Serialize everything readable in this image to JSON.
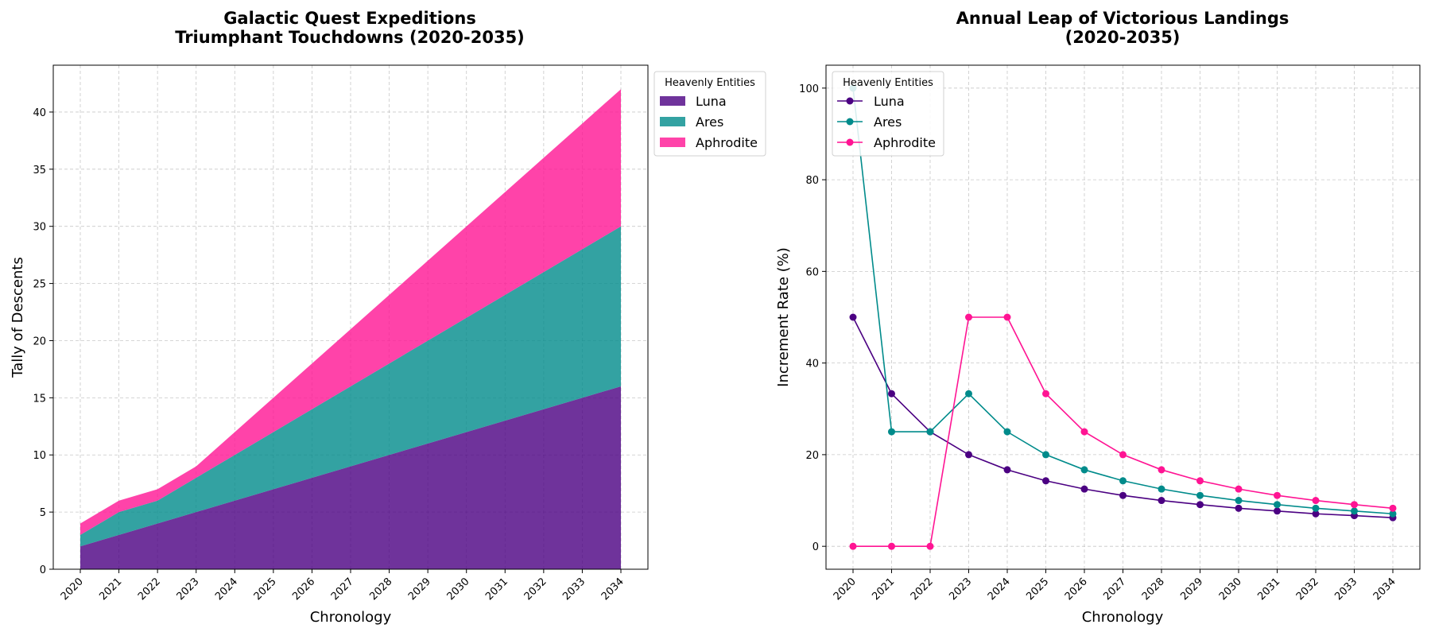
{
  "colors": {
    "luna": "#4b0082",
    "ares": "#008b8b",
    "aphrodite": "#ff1493",
    "grid": "#b0b0b0"
  },
  "chart_data": [
    {
      "type": "area",
      "stacked": true,
      "title_line1": "Galactic Quest Expeditions",
      "title_line2": "Triumphant Touchdowns (2020-2035)",
      "xlabel": "Chronology",
      "ylabel": "Tally of Descents",
      "x": [
        "2020",
        "2021",
        "2022",
        "2023",
        "2024",
        "2025",
        "2026",
        "2027",
        "2028",
        "2029",
        "2030",
        "2031",
        "2032",
        "2033",
        "2034"
      ],
      "yticks": [
        0,
        5,
        10,
        15,
        20,
        25,
        30,
        35,
        40
      ],
      "ylim": [
        0,
        44.1
      ],
      "grid": true,
      "legend": {
        "title": "Heavenly Entities",
        "placement": "outside top-right"
      },
      "series": [
        {
          "name": "Luna",
          "values": [
            2,
            3,
            4,
            5,
            6,
            7,
            8,
            9,
            10,
            11,
            12,
            13,
            14,
            15,
            16
          ]
        },
        {
          "name": "Ares",
          "values": [
            1,
            2,
            2,
            3,
            4,
            5,
            6,
            7,
            8,
            9,
            10,
            11,
            12,
            13,
            14
          ]
        },
        {
          "name": "Aphrodite",
          "values": [
            1,
            1,
            1,
            1,
            2,
            3,
            4,
            5,
            6,
            7,
            8,
            9,
            10,
            11,
            12
          ]
        }
      ]
    },
    {
      "type": "line",
      "title_line1": "Annual Leap of Victorious Landings",
      "title_line2": "(2020-2035)",
      "xlabel": "Chronology",
      "ylabel": "Increment Rate (%)",
      "x": [
        "2020",
        "2021",
        "2022",
        "2023",
        "2024",
        "2025",
        "2026",
        "2027",
        "2028",
        "2029",
        "2030",
        "2031",
        "2032",
        "2033",
        "2034"
      ],
      "yticks": [
        0,
        20,
        40,
        60,
        80,
        100
      ],
      "ylim": [
        -5,
        105
      ],
      "grid": true,
      "legend": {
        "title": "Heavenly Entities",
        "placement": "top-left"
      },
      "series": [
        {
          "name": "Luna",
          "values": [
            50,
            33.3,
            25,
            20,
            16.7,
            14.3,
            12.5,
            11.1,
            10,
            9.1,
            8.3,
            7.7,
            7.1,
            6.7,
            6.25
          ]
        },
        {
          "name": "Ares",
          "values": [
            100,
            25,
            25,
            33.3,
            25,
            20,
            16.7,
            14.3,
            12.5,
            11.1,
            10,
            9.1,
            8.3,
            7.7,
            7.1
          ]
        },
        {
          "name": "Aphrodite",
          "values": [
            0,
            0,
            0,
            50,
            50,
            33.3,
            25,
            20,
            16.7,
            14.3,
            12.5,
            11.1,
            10,
            9.1,
            8.3
          ]
        }
      ]
    }
  ]
}
